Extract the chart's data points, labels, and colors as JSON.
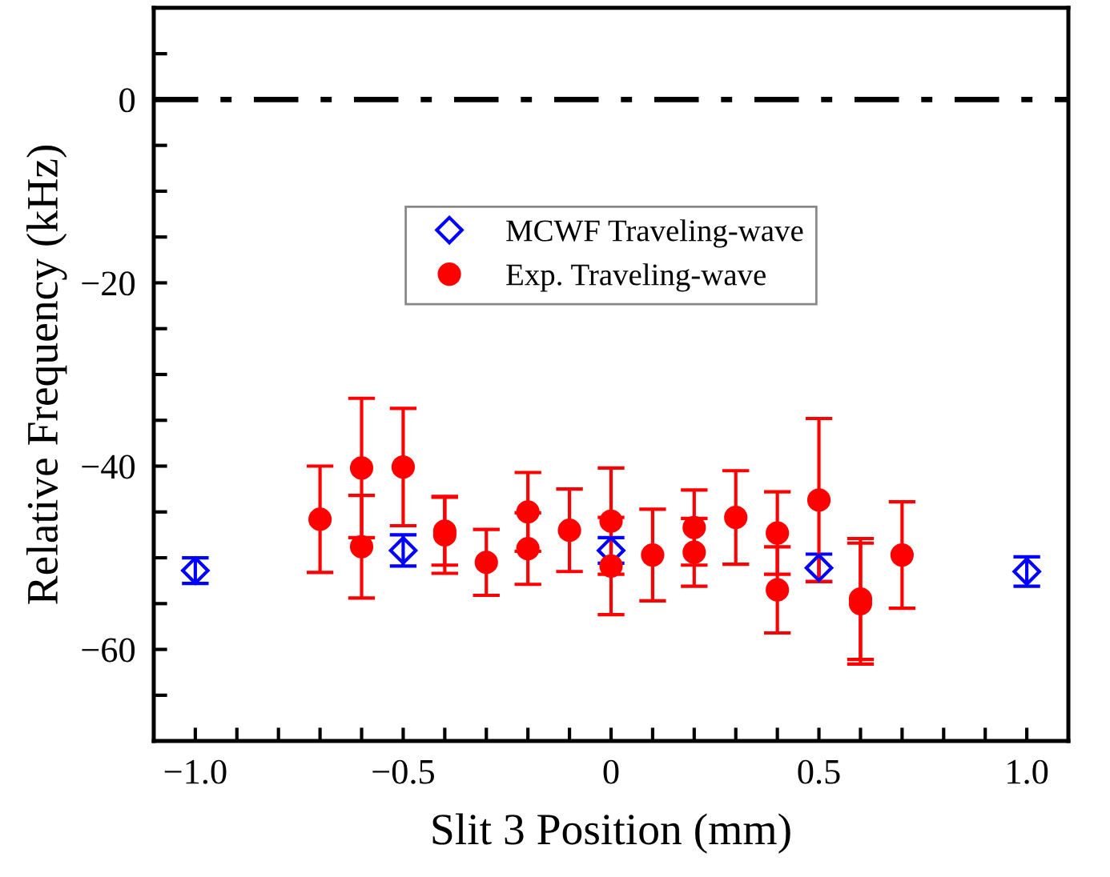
{
  "chart_data": {
    "type": "scatter",
    "xlabel": "Slit 3 Position (mm)",
    "ylabel": "Relative Frequency (kHz)",
    "xlim": [
      -1.1,
      1.1
    ],
    "ylim": [
      -70,
      10
    ],
    "xticks": [
      {
        "value": -1.0,
        "label": "−1.0"
      },
      {
        "value": -0.9,
        "label": null
      },
      {
        "value": -0.8,
        "label": null
      },
      {
        "value": -0.7,
        "label": null
      },
      {
        "value": -0.6,
        "label": null
      },
      {
        "value": -0.5,
        "label": "−0.5"
      },
      {
        "value": -0.4,
        "label": null
      },
      {
        "value": -0.3,
        "label": null
      },
      {
        "value": -0.2,
        "label": null
      },
      {
        "value": -0.1,
        "label": null
      },
      0,
      {
        "value": 0.1,
        "label": null
      },
      {
        "value": 0.2,
        "label": null
      },
      {
        "value": 0.3,
        "label": null
      },
      {
        "value": 0.4,
        "label": null
      },
      {
        "value": 0.5,
        "label": "0.5"
      },
      {
        "value": 0.6,
        "label": null
      },
      {
        "value": 0.7,
        "label": null
      },
      {
        "value": 0.8,
        "label": null
      },
      {
        "value": 0.9,
        "label": null
      },
      {
        "value": 1.0,
        "label": "1.0"
      }
    ],
    "yticks": [
      {
        "value": 5,
        "label": null
      },
      0,
      {
        "value": -5,
        "label": null
      },
      {
        "value": -10,
        "label": null
      },
      {
        "value": -15,
        "label": null
      },
      {
        "value": -20,
        "label": "−20"
      },
      {
        "value": -25,
        "label": null
      },
      {
        "value": -30,
        "label": null
      },
      {
        "value": -35,
        "label": null
      },
      {
        "value": -40,
        "label": "−40"
      },
      {
        "value": -45,
        "label": null
      },
      {
        "value": -50,
        "label": null
      },
      {
        "value": -55,
        "label": null
      },
      {
        "value": -60,
        "label": "−60"
      },
      {
        "value": -65,
        "label": null
      }
    ],
    "series": [
      {
        "name": "MCWF Traveling-wave",
        "color": "#0000ff",
        "marker": "diamond",
        "x": [
          -1.0,
          -0.5,
          0,
          0.5,
          1.0
        ],
        "values": [
          -51.4,
          -49.2,
          -49.2,
          -51.1,
          -51.5
        ],
        "errors": [
          1.4,
          1.7,
          1.4,
          1.5,
          1.6
        ]
      },
      {
        "name": "Exp. Traveling-wave",
        "color": "#ff0000",
        "marker": "circle",
        "x": [
          -0.7,
          -0.6,
          -0.6,
          -0.5,
          -0.4,
          -0.4,
          -0.3,
          -0.2,
          -0.2,
          -0.1,
          0,
          0,
          0.1,
          0.2,
          0.2,
          0.3,
          0.4,
          0.4,
          0.5,
          0.6,
          0.6,
          0.7
        ],
        "values": [
          -45.8,
          -40.2,
          -48.8,
          -40.1,
          -47.1,
          -47.5,
          -50.5,
          -45.0,
          -49.0,
          -47.0,
          -46.0,
          -50.9,
          -49.7,
          -46.7,
          -49.4,
          -45.6,
          -47.3,
          -53.5,
          -43.7,
          -54.5,
          -55.0,
          -49.7
        ],
        "errors": [
          5.8,
          7.6,
          5.6,
          6.4,
          3.7,
          4.2,
          3.6,
          4.3,
          3.9,
          4.5,
          5.8,
          5.3,
          5.0,
          4.1,
          3.7,
          5.1,
          4.5,
          4.7,
          8.9,
          6.6,
          6.6,
          5.8
        ]
      }
    ],
    "ref_lines": [
      {
        "axis": "y",
        "value": 0,
        "color": "#000000",
        "line_style": "dashdot"
      }
    ],
    "legend": "top",
    "grid": false
  }
}
